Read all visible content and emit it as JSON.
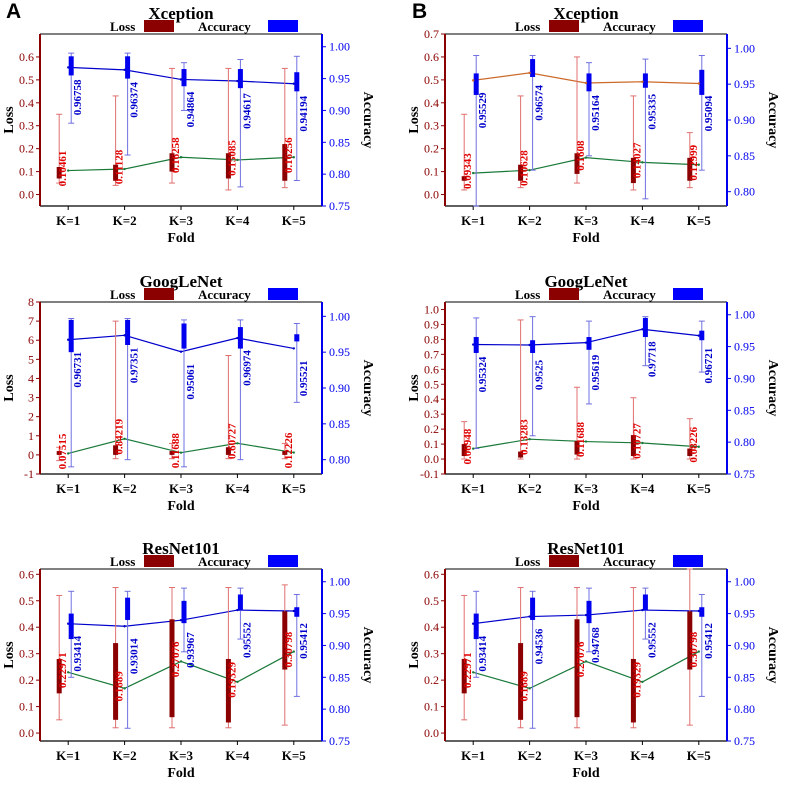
{
  "panel_labels": {
    "a": "A",
    "b": "B"
  },
  "colors": {
    "loss_axis": "#8b0000",
    "loss_label": "#e00000",
    "acc_axis": "#0000ee",
    "acc_label": "#0000cc",
    "loss_line": "#1a7a3a",
    "acc_line_a": "#0000cc",
    "acc_line_b": "#cd6a2a",
    "whisker_loss": "#e07070",
    "whisker_acc": "#7070e0"
  },
  "chart_data": [
    {
      "type": "bar",
      "panel": "A",
      "title": "Xception",
      "xlabel": "Fold",
      "ylabel": "Loss",
      "y2label": "Accuracy",
      "categories": [
        "K=1",
        "K=2",
        "K=3",
        "K=4",
        "K=5"
      ],
      "legend": [
        "Loss",
        "Accuracy"
      ],
      "ylim": [
        -0.05,
        0.7
      ],
      "yticks": [
        "0.0",
        "0.1",
        "0.2",
        "0.3",
        "0.4",
        "0.5",
        "0.6"
      ],
      "ytick_values": [
        0,
        0.1,
        0.2,
        0.3,
        0.4,
        0.5,
        0.6
      ],
      "y2lim": [
        0.75,
        1.02
      ],
      "y2ticks": [
        "0.75",
        "0.80",
        "0.85",
        "0.90",
        "0.95",
        "1.00"
      ],
      "y2tick_values": [
        0.75,
        0.8,
        0.85,
        0.9,
        0.95,
        1.0
      ],
      "loss_line": "green",
      "acc_line": "blue",
      "loss": {
        "values": [
          0.10461,
          0.11128,
          0.16258,
          0.15085,
          0.16256
        ],
        "labels": [
          "0.10461",
          "0.11128",
          "0.16258",
          "0.15085",
          "0.16256"
        ],
        "box_lo": [
          0.07,
          0.06,
          0.1,
          0.07,
          0.06
        ],
        "box_hi": [
          0.12,
          0.13,
          0.18,
          0.18,
          0.22
        ],
        "whisk_lo": [
          0.05,
          0.04,
          0.05,
          0.02,
          0.03
        ],
        "whisk_hi": [
          0.35,
          0.43,
          0.55,
          0.55,
          0.55
        ]
      },
      "accuracy": {
        "values": [
          0.96758,
          0.96374,
          0.94864,
          0.94617,
          0.94194
        ],
        "labels": [
          "0.96758",
          "0.96374",
          "0.94864",
          "0.94617",
          "0.94194"
        ],
        "box_lo": [
          0.955,
          0.95,
          0.938,
          0.935,
          0.93
        ],
        "box_hi": [
          0.985,
          0.985,
          0.965,
          0.965,
          0.96
        ],
        "whisk_lo": [
          0.88,
          0.83,
          0.9,
          0.78,
          0.79
        ],
        "whisk_hi": [
          0.99,
          0.99,
          0.975,
          0.98,
          0.985
        ]
      }
    },
    {
      "type": "bar",
      "panel": "B",
      "title": "Xception",
      "xlabel": "Fold",
      "ylabel": "Loss",
      "y2label": "Accuracy",
      "categories": [
        "K=1",
        "K=2",
        "K=3",
        "K=4",
        "K=5"
      ],
      "legend": [
        "Loss",
        "Accuracy"
      ],
      "ylim": [
        -0.05,
        0.7
      ],
      "yticks": [
        "0.0",
        "0.1",
        "0.2",
        "0.3",
        "0.4",
        "0.5",
        "0.6",
        "0.7"
      ],
      "ytick_values": [
        0,
        0.1,
        0.2,
        0.3,
        0.4,
        0.5,
        0.6,
        0.7
      ],
      "y2lim": [
        0.78,
        1.02
      ],
      "y2ticks": [
        "0.80",
        "0.85",
        "0.90",
        "0.95",
        "1.00"
      ],
      "y2tick_values": [
        0.8,
        0.85,
        0.9,
        0.95,
        1.0
      ],
      "loss_line": "green",
      "acc_line": "orange",
      "loss": {
        "values": [
          0.09343,
          0.10628,
          0.1608,
          0.14027,
          0.12999
        ],
        "labels": [
          "0.09343",
          "0.10628",
          "0.1608",
          "0.14027",
          "0.12999"
        ],
        "box_lo": [
          0.06,
          0.06,
          0.09,
          0.05,
          0.06
        ],
        "box_hi": [
          0.08,
          0.13,
          0.18,
          0.16,
          0.16
        ],
        "whisk_lo": [
          0.02,
          0.03,
          0.05,
          0.02,
          0.03
        ],
        "whisk_hi": [
          0.35,
          0.43,
          0.6,
          0.43,
          0.27
        ]
      },
      "accuracy": {
        "values": [
          0.95529,
          0.96574,
          0.95164,
          0.95335,
          0.95094
        ],
        "labels": [
          "0.95529",
          "0.96574",
          "0.95164",
          "0.95335",
          "0.95094"
        ],
        "box_lo": [
          0.935,
          0.96,
          0.94,
          0.945,
          0.935
        ],
        "box_hi": [
          0.965,
          0.985,
          0.965,
          0.965,
          0.97
        ],
        "whisk_lo": [
          0.78,
          0.83,
          0.85,
          0.79,
          0.83
        ],
        "whisk_hi": [
          0.99,
          0.99,
          0.98,
          0.985,
          0.99
        ]
      }
    },
    {
      "type": "bar",
      "panel": "A",
      "title": "GoogLeNet",
      "xlabel": "Fold",
      "ylabel": "Loss",
      "y2label": "Accuracy",
      "categories": [
        "K=1",
        "K=2",
        "K=3",
        "K=4",
        "K=5"
      ],
      "legend": [
        "Loss",
        "Accuracy"
      ],
      "ylim": [
        -1,
        8
      ],
      "yticks": [
        "-1",
        "0",
        "1",
        "2",
        "3",
        "4",
        "5",
        "6",
        "7",
        "8"
      ],
      "ytick_values": [
        -1,
        0,
        1,
        2,
        3,
        4,
        5,
        6,
        7,
        8
      ],
      "y2lim": [
        0.78,
        1.02
      ],
      "y2ticks": [
        "0.80",
        "0.85",
        "0.90",
        "0.95",
        "1.00"
      ],
      "y2tick_values": [
        0.8,
        0.85,
        0.9,
        0.95,
        1.0
      ],
      "loss_line": "green",
      "acc_line": "blue",
      "loss": {
        "values": [
          0.07515,
          0.84219,
          0.11688,
          0.60727,
          0.12226
        ],
        "labels": [
          "0.07515",
          "0.84219",
          "0.11688",
          "0.60727",
          "0.12226"
        ],
        "box_lo": [
          0.0,
          0.0,
          0.0,
          0.0,
          0.0
        ],
        "box_hi": [
          0.2,
          0.5,
          0.2,
          0.4,
          0.2
        ],
        "whisk_lo": [
          -0.3,
          -0.2,
          -0.2,
          -0.2,
          -0.2
        ],
        "whisk_hi": [
          0.4,
          7.0,
          0.6,
          5.2,
          0.6
        ]
      },
      "accuracy": {
        "values": [
          0.96731,
          0.97351,
          0.95061,
          0.96974,
          0.95521
        ],
        "labels": [
          "0.96731",
          "0.97351",
          "0.95061",
          "0.96974",
          "0.95521"
        ],
        "box_lo": [
          0.95,
          0.96,
          0.955,
          0.955,
          0.965
        ],
        "box_hi": [
          0.995,
          0.995,
          0.99,
          0.985,
          0.975
        ],
        "whisk_lo": [
          0.79,
          0.8,
          0.79,
          0.8,
          0.88
        ],
        "whisk_hi": [
          0.997,
          0.997,
          0.995,
          0.995,
          0.99
        ]
      }
    },
    {
      "type": "bar",
      "panel": "B",
      "title": "GoogLeNet",
      "xlabel": "Fold",
      "ylabel": "Loss",
      "y2label": "Accuracy",
      "categories": [
        "K=1",
        "K=2",
        "K=3",
        "K=4",
        "K=5"
      ],
      "legend": [
        "Loss",
        "Accuracy"
      ],
      "ylim": [
        -0.1,
        1.05
      ],
      "yticks": [
        "-0.1",
        "0.0",
        "0.1",
        "0.2",
        "0.3",
        "0.4",
        "0.5",
        "0.6",
        "0.7",
        "0.8",
        "0.9",
        "1.0"
      ],
      "ytick_values": [
        -0.1,
        0,
        0.1,
        0.2,
        0.3,
        0.4,
        0.5,
        0.6,
        0.7,
        0.8,
        0.9,
        1.0
      ],
      "y2lim": [
        0.75,
        1.02
      ],
      "y2ticks": [
        "0.75",
        "0.80",
        "0.85",
        "0.90",
        "0.95",
        "1.00"
      ],
      "y2tick_values": [
        0.75,
        0.8,
        0.85,
        0.9,
        0.95,
        1.0
      ],
      "loss_line": "green",
      "acc_line": "blue",
      "loss": {
        "values": [
          0.06948,
          0.13283,
          0.11688,
          0.10727,
          0.08226
        ],
        "labels": [
          "0.06948",
          "0.13283",
          "0.11688",
          "0.10727",
          "0.08226"
        ],
        "box_lo": [
          0.02,
          0.01,
          0.03,
          0.02,
          0.02
        ],
        "box_hi": [
          0.1,
          0.05,
          0.12,
          0.16,
          0.07
        ],
        "whisk_lo": [
          0.0,
          0.0,
          0.0,
          0.0,
          0.0
        ],
        "whisk_hi": [
          0.25,
          0.93,
          0.48,
          0.41,
          0.27
        ]
      },
      "accuracy": {
        "values": [
          0.95324,
          0.9525,
          0.95619,
          0.97718,
          0.96721
        ],
        "labels": [
          "0.95324",
          "0.9525",
          "0.95619",
          "0.97718",
          "0.96721"
        ],
        "box_lo": [
          0.94,
          0.94,
          0.945,
          0.965,
          0.96
        ],
        "box_hi": [
          0.965,
          0.96,
          0.965,
          0.995,
          0.975
        ],
        "whisk_lo": [
          0.79,
          0.81,
          0.86,
          0.92,
          0.91
        ],
        "whisk_hi": [
          0.995,
          0.997,
          0.99,
          0.997,
          0.99
        ]
      }
    },
    {
      "type": "bar",
      "panel": "A",
      "title": "ResNet101",
      "xlabel": "Fold",
      "ylabel": "Loss",
      "y2label": "Accuracy",
      "categories": [
        "K=1",
        "K=2",
        "K=3",
        "K=4",
        "K=5"
      ],
      "legend": [
        "Loss",
        "Accuracy"
      ],
      "ylim": [
        -0.03,
        0.62
      ],
      "yticks": [
        "0.0",
        "0.1",
        "0.2",
        "0.3",
        "0.4",
        "0.5",
        "0.6"
      ],
      "ytick_values": [
        0,
        0.1,
        0.2,
        0.3,
        0.4,
        0.5,
        0.6
      ],
      "y2lim": [
        0.75,
        1.02
      ],
      "y2ticks": [
        "0.75",
        "0.80",
        "0.85",
        "0.90",
        "0.95",
        "1.00"
      ],
      "y2tick_values": [
        0.75,
        0.8,
        0.85,
        0.9,
        0.95,
        1.0
      ],
      "loss_line": "green",
      "acc_line": "blue",
      "loss": {
        "values": [
          0.22971,
          0.1689,
          0.27076,
          0.19329,
          0.30798
        ],
        "labels": [
          "0.22971",
          "0.1689",
          "0.27076",
          "0.19329",
          "0.30798"
        ],
        "box_lo": [
          0.15,
          0.05,
          0.06,
          0.04,
          0.24
        ],
        "box_hi": [
          0.28,
          0.34,
          0.43,
          0.28,
          0.46
        ],
        "whisk_lo": [
          0.05,
          0.02,
          0.02,
          0.02,
          0.03
        ],
        "whisk_hi": [
          0.52,
          0.55,
          0.55,
          0.55,
          0.56
        ]
      },
      "accuracy": {
        "values": [
          0.93414,
          0.93014,
          0.93967,
          0.95552,
          0.95412
        ],
        "labels": [
          "0.93414",
          "0.93014",
          "0.93967",
          "0.95552",
          "0.95412"
        ],
        "box_lo": [
          0.91,
          0.94,
          0.935,
          0.955,
          0.945
        ],
        "box_hi": [
          0.95,
          0.975,
          0.97,
          0.98,
          0.96
        ],
        "whisk_lo": [
          0.85,
          0.77,
          0.89,
          0.91,
          0.82
        ],
        "whisk_hi": [
          0.985,
          0.985,
          0.99,
          0.99,
          0.98
        ]
      }
    },
    {
      "type": "bar",
      "panel": "B",
      "title": "ResNet101",
      "xlabel": "Fold",
      "ylabel": "Loss",
      "y2label": "Accuracy",
      "categories": [
        "K=1",
        "K=2",
        "K=3",
        "K=4",
        "K=5"
      ],
      "legend": [
        "Loss",
        "Accuracy"
      ],
      "ylim": [
        -0.03,
        0.62
      ],
      "yticks": [
        "0.0",
        "0.1",
        "0.2",
        "0.3",
        "0.4",
        "0.5",
        "0.6"
      ],
      "ytick_values": [
        0,
        0.1,
        0.2,
        0.3,
        0.4,
        0.5,
        0.6
      ],
      "y2lim": [
        0.75,
        1.02
      ],
      "y2ticks": [
        "0.75",
        "0.80",
        "0.85",
        "0.90",
        "0.95",
        "1.00"
      ],
      "y2tick_values": [
        0.75,
        0.8,
        0.85,
        0.9,
        0.95,
        1.0
      ],
      "loss_line": "green",
      "acc_line": "blue",
      "loss": {
        "values": [
          0.22971,
          0.1689,
          0.27076,
          0.19329,
          0.30798
        ],
        "labels": [
          "0.22971",
          "0.1689",
          "0.27076",
          "0.19329",
          "0.30798"
        ],
        "box_lo": [
          0.15,
          0.05,
          0.06,
          0.04,
          0.24
        ],
        "box_hi": [
          0.28,
          0.34,
          0.43,
          0.28,
          0.46
        ],
        "whisk_lo": [
          0.05,
          0.02,
          0.02,
          0.02,
          0.03
        ],
        "whisk_hi": [
          0.52,
          0.55,
          0.55,
          0.55,
          0.62
        ]
      },
      "accuracy": {
        "values": [
          0.93414,
          0.94536,
          0.94768,
          0.95552,
          0.95412
        ],
        "labels": [
          "0.93414",
          "0.94536",
          "0.94768",
          "0.95552",
          "0.95412"
        ],
        "box_lo": [
          0.91,
          0.94,
          0.935,
          0.955,
          0.945
        ],
        "box_hi": [
          0.95,
          0.975,
          0.97,
          0.98,
          0.96
        ],
        "whisk_lo": [
          0.85,
          0.77,
          0.89,
          0.91,
          0.82
        ],
        "whisk_hi": [
          0.985,
          0.985,
          0.99,
          0.99,
          0.98
        ]
      }
    }
  ]
}
